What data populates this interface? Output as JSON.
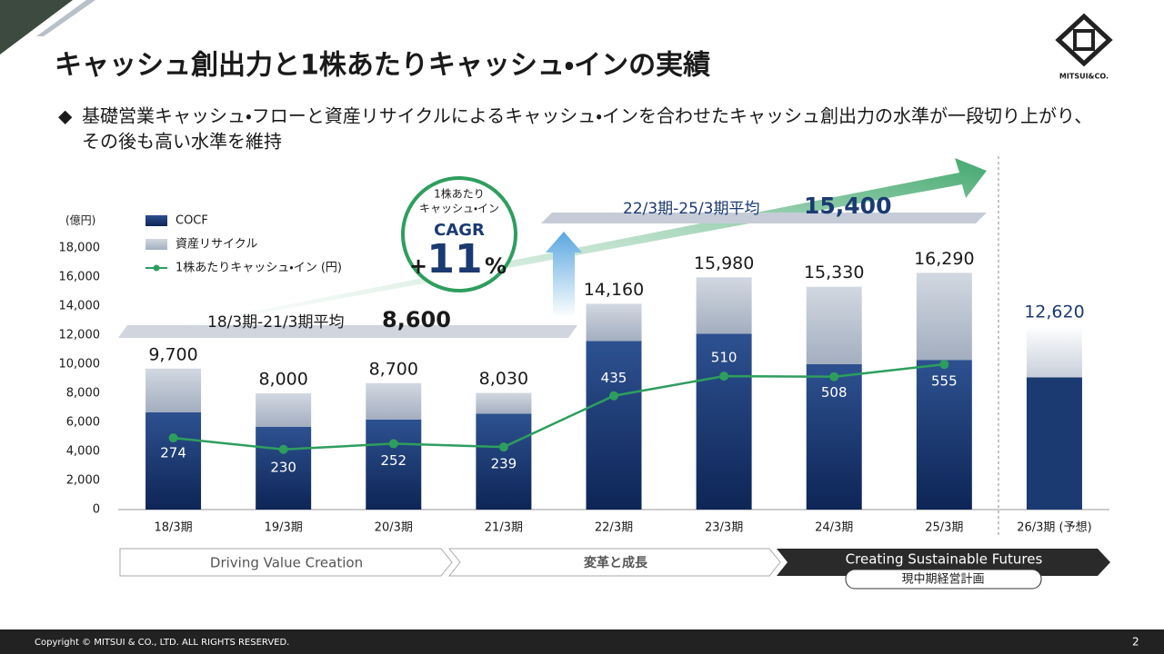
{
  "slide": {
    "title": "キャッシュ創出力と1株あたりキャッシュ・インの実績",
    "bullet": "◆",
    "subtitle": [
      "基礎営業キャッシュ・フローと資産リサイクルによるキャッシュ・インを合わせたキャッシュ創出力の水準が一段切り上がり、",
      "その後も高い水準を維持"
    ],
    "logo": "MITSUI&CO.",
    "footer": "Copyright © MITSUI & CO., LTD. ALL RIGHTS RESERVED.",
    "page": "2",
    "phases": [
      "Driving Value Creation",
      "変革と成長",
      "Creating Sustainable Futures"
    ],
    "plan_label": "現中期経営計画",
    "cagr": {
      "caption": [
        "1株あたり",
        "キャッシュ・イン"
      ],
      "label": "CAGR",
      "sign": "+",
      "number": "11",
      "unit": "%"
    },
    "averages": [
      {
        "period": "18/3期-21/3期平均",
        "value_label": "8,600"
      },
      {
        "period": "22/3期-25/3期平均",
        "value_label": "15,400"
      }
    ]
  },
  "chart_data": {
    "type": "stacked-bar-line",
    "unit": "(億円)",
    "categories": [
      "18/3期",
      "19/3期",
      "20/3期",
      "21/3期",
      "22/3期",
      "23/3期",
      "24/3期",
      "25/3期",
      "26/3期 (予想)"
    ],
    "series": [
      {
        "name": "COCF",
        "color": "#1b3a72",
        "values": [
          6700,
          5700,
          6200,
          6600,
          11600,
          12100,
          10000,
          10300,
          9100
        ]
      },
      {
        "name": "資産リサイクル",
        "color": "#b3bccb",
        "values": [
          3000,
          2300,
          2500,
          1430,
          2560,
          3880,
          5330,
          5990,
          3520
        ]
      },
      {
        "name": "1株あたりキャッシュ・イン (円)",
        "color": "#2e9e5e",
        "axis": "y2",
        "values": [
          274,
          230,
          252,
          239,
          435,
          510,
          508,
          555,
          null
        ]
      }
    ],
    "totals": {
      "values": [
        9700,
        8000,
        8700,
        8030,
        14160,
        15980,
        15330,
        16290,
        12620
      ],
      "value_labels": [
        "9,700",
        "8,000",
        "8,700",
        "8,030",
        "14,160",
        "15,980",
        "15,330",
        "16,290",
        "12,620"
      ]
    },
    "ylim": [
      0,
      18000
    ],
    "yticks": [
      0,
      {
        "value": 2000,
        "label": "2,000"
      },
      {
        "value": 4000,
        "label": "4,000"
      },
      {
        "value": 6000,
        "label": "6,000"
      },
      {
        "value": 8000,
        "label": "8,000"
      },
      {
        "value": 10000,
        "label": "10,000"
      },
      {
        "value": 12000,
        "label": "12,000"
      },
      {
        "value": 14000,
        "label": "14,000"
      },
      {
        "value": 16000,
        "label": "16,000"
      },
      {
        "value": 18000,
        "label": "18,000"
      }
    ],
    "y2lim": [
      0,
      1000
    ]
  }
}
